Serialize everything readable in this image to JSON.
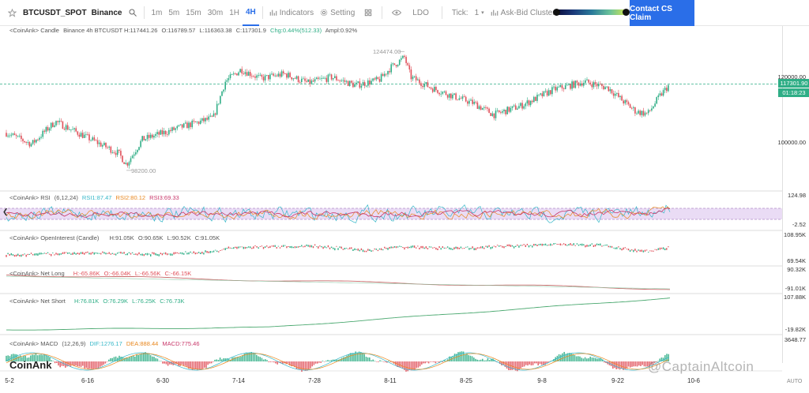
{
  "toolbar": {
    "symbol": "BTCUSDT_SPOT",
    "exchange": "Binance",
    "intervals": [
      "1m",
      "5m",
      "15m",
      "30m",
      "1H",
      "4H"
    ],
    "active_interval": "4H",
    "indicators": "Indicators",
    "setting": "Setting",
    "ldo": "LDO",
    "tick_label": "Tick:",
    "tick_value": "1",
    "ask_bid": "Ask-Bid Cluster",
    "contact": "Contact CS Claim",
    "gradient_level": 0.97
  },
  "candle": {
    "label": "<CoinAnk> Candle",
    "info": "Binance 4h BTCUSDT H:117441.26",
    "open": "O:116789.57",
    "low": "L:116363.38",
    "close": "C:117301.9",
    "chg": "Chg:0.44%(512.33)",
    "ampl": "Ampl:0.92%",
    "high_marker": "124474.00",
    "low_marker": "98200.00",
    "axis": [
      "120000.00",
      "100000.00"
    ],
    "price_tag": "117301.90",
    "countdown": "01:18:23"
  },
  "rsi": {
    "label": "<CoinAnk> RSI",
    "params": "(6,12,24)",
    "rsi1": "RSI1:87.47",
    "rsi2": "RSI2:80.12",
    "rsi3": "RSI3:69.33",
    "axis_top": "124.98",
    "axis_bottom": "-2.52"
  },
  "oi": {
    "label": "<CoinAnk> OpenInterest (Candle)",
    "h": "H:91.05K",
    "o": "O:90.65K",
    "l": "L:90.52K",
    "c": "C:91.05K",
    "axis_top": "108.95K",
    "axis_bottom": "69.54K"
  },
  "netlong": {
    "label": "<CoinAnk> Net Long",
    "h": "H:-65.86K",
    "o": "O:-66.04K",
    "l": "L:-66.56K",
    "c": "C:-66.15K",
    "axis_top": "90.32K",
    "axis_bottom": "-91.01K"
  },
  "netshort": {
    "label": "<CoinAnk> Net Short",
    "h": "H:76.81K",
    "o": "O:76.29K",
    "l": "L:76.25K",
    "c": "C:76.73K",
    "axis_top": "107.88K",
    "axis_bottom": "-19.82K"
  },
  "macd": {
    "label": "<CoinAnk> MACD",
    "params": "(12,26,9)",
    "dif": "DIF:1276.17",
    "dea": "DEA:888.44",
    "macd": "MACD:775.46",
    "axis_top": "3648.77"
  },
  "x_axis": [
    "5-2",
    "6-16",
    "6-30",
    "7-14",
    "7-28",
    "8-11",
    "8-25",
    "9-8",
    "9-22",
    "10-6"
  ],
  "watermarks": {
    "coinank": "CoinAnk",
    "captain": "@CaptainAltcoin",
    "auto": "AUTO"
  },
  "colors": {
    "up": "#2fae86",
    "down": "#e0505a",
    "accent": "#2a6ee8"
  },
  "chart_data": {
    "type": "candlestick",
    "high": 124474.0,
    "low": 98200.0,
    "last": 117301.9,
    "ylim": [
      94000,
      128000
    ]
  }
}
